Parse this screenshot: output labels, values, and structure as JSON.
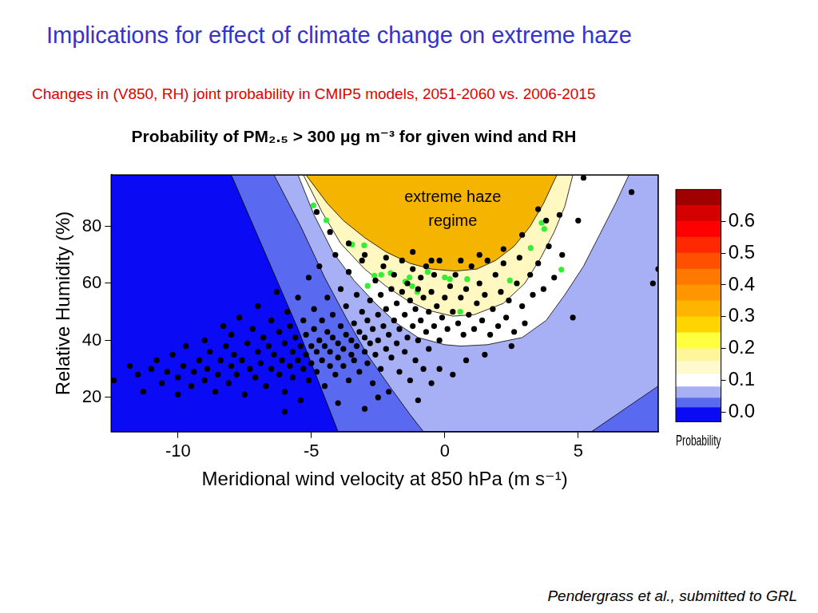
{
  "header": {
    "title": "Implications for effect of climate change on extreme haze",
    "subtitle": "Changes in (V850, RH) joint probability in CMIP5 models, 2051-2060 vs. 2006-2015",
    "citation": "Pendergrass et al., submitted to GRL"
  },
  "chart_data": {
    "type": "scatter",
    "title": "Probability of PM₂.₅ > 300 μg m⁻³ for given wind and RH",
    "x_label": "Meridional wind velocity at 850 hPa (m s⁻¹)",
    "y_label": "Relative Humidity (%)",
    "xlim": [
      -12.5,
      8
    ],
    "xticks": [
      -10,
      -5,
      0,
      5
    ],
    "ylim": [
      8,
      98
    ],
    "yticks": [
      20,
      40,
      60,
      80
    ],
    "grid": false,
    "annotations": [
      {
        "text": "extreme haze\nregime",
        "x": 0.3,
        "y": 86
      }
    ],
    "contours": [
      {
        "color": "#5a6af0",
        "x": [
          -12.5,
          8,
          8,
          -12.5
        ],
        "y": [
          8,
          8,
          98,
          98
        ]
      },
      {
        "color": "#0a0af5",
        "x": [
          -12.5,
          -4.0,
          -5.5,
          -8.0,
          -12.5
        ],
        "y": [
          8,
          8,
          44,
          98,
          98
        ]
      },
      {
        "color": "#a8b0f5",
        "x": [
          -6.4,
          -5.4,
          -4.5,
          -3.7,
          -2.9,
          -2.0,
          -1.3,
          -0.8,
          5.5,
          8,
          8
        ],
        "y": [
          98,
          80,
          62,
          48,
          35,
          23,
          14,
          8,
          8,
          24,
          98
        ]
      },
      {
        "color": "#ffffff",
        "x": [
          -5.5,
          -4.9,
          -4.2,
          -3.4,
          -2.6,
          -1.8,
          -1.0,
          0,
          0.6,
          1.6,
          2.9,
          3.8,
          4.5,
          5.2,
          5.8,
          6.4,
          6.9
        ],
        "y": [
          98,
          84,
          71,
          61,
          53,
          46,
          41,
          38.5,
          38,
          38.5,
          41,
          47,
          56,
          66,
          77,
          88,
          98
        ]
      },
      {
        "color": "#fff8c0",
        "x": [
          -5.3,
          -4.6,
          -3.9,
          -3.0,
          -2.2,
          -1.4,
          -0.6,
          0.3,
          1.1,
          2.2,
          3.0,
          3.6,
          4.1,
          4.5,
          4.8
        ],
        "y": [
          98,
          85,
          74,
          65,
          59,
          54,
          50.5,
          48.5,
          49,
          53,
          60,
          69,
          78,
          87,
          98
        ]
      },
      {
        "color": "#f5b400",
        "x": [
          -5.2,
          -4.4,
          -3.8,
          -3.0,
          -2.2,
          -1.3,
          -0.5,
          0.4,
          1.2,
          1.9,
          2.6,
          3.2,
          3.7,
          4.2
        ],
        "y": [
          98,
          88,
          82,
          76,
          71,
          67,
          65,
          64.3,
          65,
          68,
          73,
          80,
          88,
          98
        ]
      }
    ],
    "series": [
      {
        "color": "#000000",
        "marker": "circle",
        "x": [
          -12.4,
          -11.8,
          -11.5,
          -11.3,
          -11,
          -10.8,
          -10.6,
          -10.4,
          -10.2,
          -10,
          -10,
          -9.8,
          -9.7,
          -9.5,
          -9.4,
          -9.2,
          -9,
          -9,
          -8.9,
          -8.8,
          -8.6,
          -8.5,
          -8.4,
          -8.3,
          -8.2,
          -8.1,
          -8,
          -8,
          -7.9,
          -7.8,
          -7.7,
          -7.6,
          -7.5,
          -7.4,
          -7.3,
          -7.2,
          -7.1,
          -7,
          -7,
          -6.9,
          -6.8,
          -6.7,
          -6.6,
          -6.5,
          -6.5,
          -6.4,
          -6.3,
          -6.2,
          -6.2,
          -6.1,
          -6,
          -6,
          -5.9,
          -5.8,
          -5.8,
          -5.7,
          -5.7,
          -5.6,
          -5.5,
          -5.5,
          -5.4,
          -5.4,
          -5.3,
          -5.3,
          -5.2,
          -5.2,
          -5.1,
          -5.1,
          -5,
          -5,
          -4.9,
          -4.9,
          -4.8,
          -4.8,
          -4.7,
          -4.7,
          -4.6,
          -4.6,
          -4.5,
          -4.5,
          -4.4,
          -4.4,
          -4.3,
          -4.3,
          -4.2,
          -4.2,
          -4.1,
          -4.1,
          -4,
          -4,
          -3.9,
          -3.9,
          -3.8,
          -3.8,
          -3.7,
          -3.7,
          -3.6,
          -3.6,
          -3.5,
          -3.5,
          -3.4,
          -3.4,
          -3.3,
          -3.3,
          -3.2,
          -3.2,
          -3.1,
          -3.1,
          -3,
          -3,
          -2.9,
          -2.9,
          -2.8,
          -2.8,
          -2.7,
          -2.7,
          -2.6,
          -2.6,
          -2.5,
          -2.5,
          -2.4,
          -2.4,
          -2.3,
          -2.3,
          -2.2,
          -2.2,
          -2.1,
          -2.1,
          -2,
          -2,
          -1.9,
          -1.9,
          -1.8,
          -1.8,
          -1.7,
          -1.7,
          -1.6,
          -1.6,
          -1.5,
          -1.5,
          -1.4,
          -1.4,
          -1.3,
          -1.3,
          -1.2,
          -1.2,
          -1.1,
          -1.1,
          -1,
          -1,
          -0.9,
          -0.9,
          -0.8,
          -0.8,
          -0.7,
          -0.7,
          -0.6,
          -0.6,
          -0.5,
          -0.4,
          -0.4,
          -0.3,
          -0.2,
          -0.2,
          -0.1,
          0,
          0.1,
          0.2,
          0.3,
          0.4,
          0.5,
          0.6,
          0.7,
          0.8,
          0.9,
          1,
          1.1,
          1.2,
          1.3,
          1.4,
          1.5,
          1.6,
          1.7,
          1.8,
          1.9,
          2,
          2.1,
          2.2,
          2.3,
          2.4,
          2.6,
          2.7,
          2.8,
          2.9,
          3,
          3.2,
          3.3,
          3.5,
          3.7,
          3.9,
          4.1,
          4.4,
          4.8,
          5,
          5.2,
          7,
          7.8,
          8,
          -4.8,
          -4.3,
          -3.6,
          -3.0,
          -2.2,
          -1.2,
          -0.5,
          0.6,
          1.3,
          2.2,
          2.9,
          3.5,
          3.8,
          4.3,
          -6,
          -4,
          -3,
          -2.5,
          -1,
          -0.5,
          0.3,
          0.8,
          1.5,
          2.5,
          -0.2
        ],
        "y": [
          26,
          31,
          28,
          22,
          30,
          33,
          25,
          29,
          35,
          27,
          21,
          31,
          38,
          24,
          29,
          33,
          26,
          40,
          30,
          36,
          22,
          28,
          33,
          45,
          38,
          25,
          31,
          42,
          35,
          28,
          48,
          33,
          21,
          39,
          30,
          44,
          27,
          36,
          52,
          32,
          41,
          24,
          38,
          30,
          47,
          35,
          57,
          28,
          43,
          33,
          39,
          22,
          50,
          31,
          45,
          36,
          27,
          41,
          33,
          55,
          38,
          19,
          30,
          47,
          35,
          42,
          26,
          62,
          38,
          32,
          44,
          51,
          29,
          36,
          40,
          66,
          33,
          47,
          24,
          38,
          43,
          55,
          31,
          36,
          41,
          49,
          28,
          70,
          34,
          39,
          45,
          58,
          31,
          37,
          42,
          52,
          26,
          64,
          35,
          40,
          46,
          33,
          56,
          38,
          29,
          43,
          50,
          68,
          36,
          41,
          47,
          32,
          54,
          39,
          25,
          44,
          61,
          35,
          49,
          40,
          30,
          56,
          45,
          66,
          37,
          51,
          42,
          22,
          58,
          34,
          47,
          63,
          39,
          53,
          29,
          44,
          57,
          68,
          36,
          49,
          41,
          60,
          26,
          54,
          45,
          65,
          33,
          51,
          58,
          40,
          47,
          62,
          30,
          55,
          43,
          66,
          50,
          37,
          57,
          45,
          63,
          52,
          40,
          68,
          48,
          55,
          44,
          59,
          50,
          63,
          46,
          55,
          42,
          58,
          49,
          66,
          44,
          53,
          60,
          47,
          56,
          68,
          42,
          51,
          63,
          45,
          57,
          67,
          48,
          54,
          43,
          60,
          69,
          52,
          46,
          63,
          56,
          67,
          58,
          73,
          62,
          70,
          48,
          82,
          97,
          92,
          60,
          65,
          85,
          78,
          74,
          70,
          69,
          71,
          68,
          68,
          70,
          72,
          77,
          86,
          82,
          84,
          15,
          18,
          16,
          20,
          19,
          25,
          28,
          33,
          35,
          38,
          30
        ]
      },
      {
        "color": "#33ee33",
        "marker": "circle",
        "x": [
          -4.92,
          -4.44,
          -3.47,
          -3.02,
          -2.89,
          -2.64,
          -2.38,
          -2.03,
          -1.48,
          -1.32,
          -1.22,
          -1.03,
          -0.64,
          0,
          0.19,
          0.84,
          0.58,
          2.44,
          3.22,
          3.63,
          3.73,
          4.37
        ],
        "y": [
          87.3,
          82.1,
          73.6,
          73.3,
          59.1,
          62.7,
          63,
          63.6,
          60.6,
          62.1,
          59,
          57,
          64,
          62.1,
          61.5,
          61.5,
          50,
          61,
          72.4,
          81.2,
          79.1,
          64.8
        ]
      }
    ],
    "colorbar": {
      "title": "Probability",
      "range": [
        -0.03,
        0.7
      ],
      "ticks": [
        {
          "value": 0,
          "label": "0.0"
        },
        0.1,
        0.2,
        0.3,
        0.4,
        0.5,
        0.6
      ],
      "levels": [
        -0.03,
        0.015,
        0.045,
        0.08,
        0.12,
        0.16,
        0.2,
        0.25,
        0.3,
        0.35,
        0.4,
        0.45,
        0.5,
        0.55,
        0.6,
        0.65,
        0.7
      ],
      "colors": [
        "#0a0af5",
        "#5a6af0",
        "#a8b0f5",
        "#ffffff",
        "#fffacd",
        "#fff59a",
        "#ffff40",
        "#ffd400",
        "#ffb400",
        "#ff9600",
        "#ff7800",
        "#ff5000",
        "#ff2800",
        "#ff0000",
        "#d40000",
        "#a00000"
      ]
    }
  }
}
